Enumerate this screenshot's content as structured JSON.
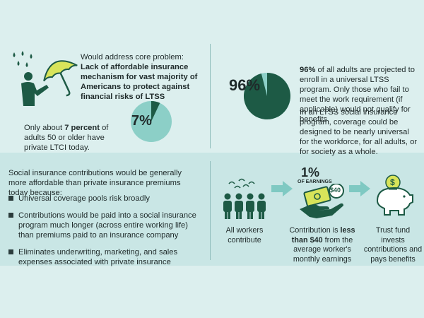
{
  "colors": {
    "background": "#dcefee",
    "band": "#c9e6e5",
    "dark_green": "#1d5a45",
    "light_teal": "#8ccfc7",
    "accent_arrow": "#7fc9c2",
    "icon_yellow": "#d8e45a"
  },
  "top_left": {
    "heading": "Would address core problem:",
    "heading_bold": "Lack of affordable insurance mechanism for vast majority of Americans to protect against financial risks of LTSS",
    "pie_label": "7%",
    "pie_fraction": 0.07,
    "stat_prefix": "Only about ",
    "stat_bold": "7 percent",
    "stat_suffix": " of adults 50 or older have private LTCI today."
  },
  "top_right": {
    "pie_label": "96%",
    "pie_fraction": 0.96,
    "para1_bold": "96%",
    "para1_rest": " of all adults are projected to enroll in a universal LTSS program. Only those who fail to meet the work requirement (if applicable) would not qualify for benefits.",
    "para2": "In an LTSS social insurance program, coverage could be designed to be nearly universal for the workforce, for all adults, or for society as a whole."
  },
  "bottom_left": {
    "intro": "Social insurance contributions would be generally more affordable than private insurance premiums today because:",
    "bullets": [
      "Universal coverage pools risk broadly",
      "Contributions would be paid into a social insurance program much longer (across entire working life) than premiums paid to an insurance company",
      "Eliminates underwriting, marketing, and sales expenses associated with private insurance"
    ]
  },
  "bottom_right": {
    "workers_caption": "All workers contribute",
    "earnings_pct": "1%",
    "earnings_label": "OF EARNINGS",
    "coin_label": "$40",
    "piggy_coin": "$",
    "contrib_prefix": "Contribution is ",
    "contrib_bold": "less than $40",
    "contrib_suffix": " from the average worker's monthly earnings",
    "trust_caption": "Trust fund invests contributions and pays benefits"
  }
}
